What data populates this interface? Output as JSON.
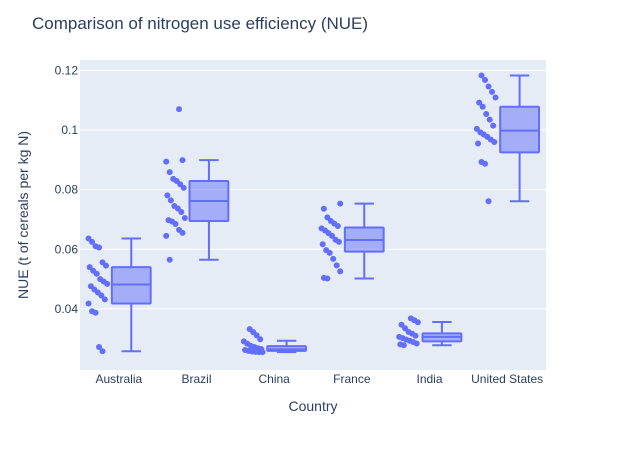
{
  "chart_data": {
    "type": "box",
    "title": "Comparison of nitrogen use efficiency (NUE)",
    "xlabel": "Country",
    "ylabel": "NUE (t of cereals per kg N)",
    "ylim": [
      0.0195,
      0.1235
    ],
    "yticks": [
      {
        "value": 0.04,
        "label": "0.04"
      },
      {
        "value": 0.06,
        "label": "0.06"
      },
      {
        "value": 0.08,
        "label": "0.08"
      },
      {
        "value": 0.1,
        "label": "0.1"
      },
      {
        "value": 0.12,
        "label": "0.12"
      }
    ],
    "grid": true,
    "colors": {
      "plot_bg": "#e5ecf6",
      "grid": "#ffffff",
      "box_line": "#636efa",
      "box_fill": "rgba(99,110,250,0.5)",
      "point": "#636efa"
    },
    "categories": [
      "Australia",
      "Brazil",
      "China",
      "France",
      "India",
      "United States"
    ],
    "boxes": [
      {
        "category": "Australia",
        "min": 0.0258,
        "q1": 0.0418,
        "median": 0.0482,
        "q3": 0.054,
        "max": 0.0636,
        "points": [
          0.0636,
          0.0625,
          0.061,
          0.0606,
          0.0556,
          0.0545,
          0.054,
          0.0528,
          0.0518,
          0.05,
          0.0492,
          0.0484,
          0.0476,
          0.0465,
          0.0455,
          0.0445,
          0.0432,
          0.0418,
          0.0392,
          0.0387,
          0.0272,
          0.0258
        ]
      },
      {
        "category": "Brazil",
        "min": 0.0565,
        "q1": 0.0695,
        "median": 0.0762,
        "q3": 0.0829,
        "max": 0.0899,
        "points": [
          0.107,
          0.0899,
          0.0894,
          0.0859,
          0.0836,
          0.0829,
          0.0818,
          0.0806,
          0.0781,
          0.0764,
          0.0745,
          0.0737,
          0.0725,
          0.0705,
          0.0698,
          0.0693,
          0.0685,
          0.0665,
          0.0655,
          0.0645,
          0.0565
        ]
      },
      {
        "category": "China",
        "min": 0.0255,
        "q1": 0.0259,
        "median": 0.0264,
        "q3": 0.0275,
        "max": 0.0293,
        "points": [
          0.0332,
          0.0322,
          0.0311,
          0.0298,
          0.0291,
          0.0283,
          0.0276,
          0.0272,
          0.0268,
          0.0265,
          0.0262,
          0.0259,
          0.0257,
          0.0256,
          0.0255,
          0.0255
        ]
      },
      {
        "category": "France",
        "min": 0.0502,
        "q1": 0.0592,
        "median": 0.0631,
        "q3": 0.0673,
        "max": 0.0753,
        "points": [
          0.0753,
          0.0736,
          0.0707,
          0.0695,
          0.0686,
          0.0678,
          0.067,
          0.0663,
          0.0654,
          0.0645,
          0.0632,
          0.0625,
          0.0617,
          0.0597,
          0.0588,
          0.0568,
          0.0546,
          0.0526,
          0.0504,
          0.0502
        ]
      },
      {
        "category": "India",
        "min": 0.0278,
        "q1": 0.0291,
        "median": 0.0306,
        "q3": 0.0318,
        "max": 0.0356,
        "points": [
          0.0368,
          0.0362,
          0.0355,
          0.0347,
          0.0335,
          0.0323,
          0.0317,
          0.031,
          0.0306,
          0.0302,
          0.0297,
          0.0293,
          0.0289,
          0.0284,
          0.0281,
          0.0278
        ]
      },
      {
        "category": "United States",
        "min": 0.0761,
        "q1": 0.0925,
        "median": 0.0998,
        "q3": 0.1078,
        "max": 0.1183,
        "points": [
          0.1183,
          0.1168,
          0.1146,
          0.1128,
          0.1109,
          0.1092,
          0.1078,
          0.1054,
          0.1035,
          0.1015,
          0.1004,
          0.0992,
          0.0985,
          0.0977,
          0.0968,
          0.096,
          0.0955,
          0.0893,
          0.0887,
          0.0761
        ]
      }
    ]
  }
}
